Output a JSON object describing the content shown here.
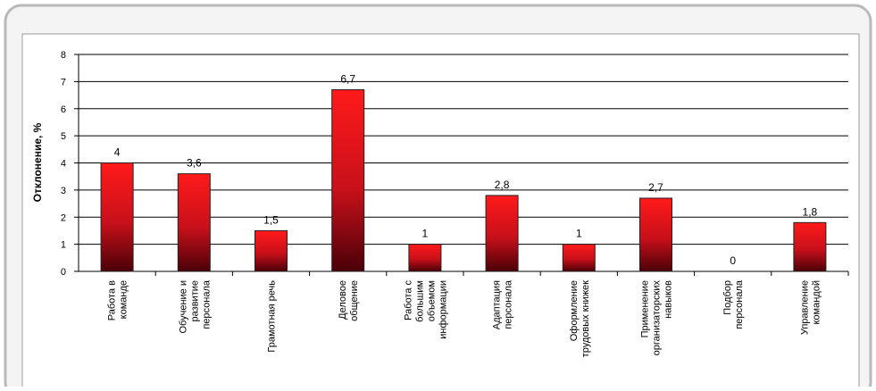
{
  "chart_data": {
    "type": "bar",
    "y_label": "Отклонение, %",
    "categories": [
      "Работа в\nкоманде",
      "Обучение и\nразвитие\nперсонала",
      "Грамотная речь",
      "Деловое\nобщение",
      "Работа с\nбольшим\nобъемом\nинформации",
      "Адаптация\nперсонала",
      "Оформление\nтрудовых книжек",
      "Применение\nорганизаторских\nнавыков",
      "Подбор\nперсонала",
      "Управление\nкомандой"
    ],
    "values": [
      4,
      3.6,
      1.5,
      6.7,
      1,
      2.8,
      1,
      2.7,
      0,
      1.8
    ],
    "value_labels": [
      "4",
      "3,6",
      "1,5",
      "6,7",
      "1",
      "2,8",
      "1",
      "2,7",
      "0",
      "1,8"
    ],
    "color": "#e8141c",
    "ylim": [
      0,
      8
    ],
    "yticks": [
      0,
      1,
      2,
      3,
      4,
      5,
      6,
      7,
      8
    ],
    "grid": true
  }
}
